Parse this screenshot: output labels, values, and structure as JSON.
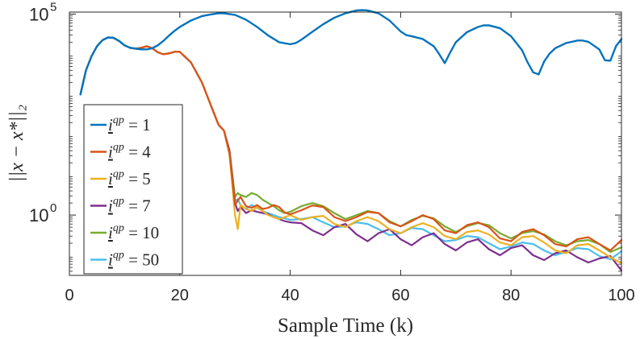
{
  "chart_data": {
    "type": "line",
    "title": "",
    "xlabel": "Sample Time (k)",
    "ylabel": "||x − x*||₂",
    "yscale": "log",
    "xlim": [
      0,
      100
    ],
    "ylim_log10": [
      -1.5,
      5.05
    ],
    "x_ticks": [
      0,
      20,
      40,
      60,
      80,
      100
    ],
    "x_tick_labels": [
      "0",
      "20",
      "40",
      "60",
      "80",
      "100"
    ],
    "y_ticks": [
      {
        "value_log10": 0,
        "base": "10",
        "exp": "0"
      },
      {
        "value_log10": 5,
        "base": "10",
        "exp": "5"
      }
    ],
    "legend_position": "middle-left",
    "legend_label_prefix": "i",
    "legend_label_superscript": "qp",
    "series": [
      {
        "name": "1",
        "color": "#0072BD",
        "x": [
          2,
          3,
          4,
          5,
          6,
          7,
          8,
          9,
          10,
          11,
          12,
          13,
          14,
          15,
          16,
          17,
          18,
          19,
          20,
          22,
          24,
          26,
          27,
          28,
          30,
          32,
          34,
          36,
          38,
          40,
          41,
          42,
          44,
          46,
          48,
          50,
          52,
          53,
          54,
          56,
          58,
          60,
          61,
          62,
          64,
          66,
          67,
          68,
          69,
          70,
          72,
          74,
          75,
          76,
          78,
          80,
          82,
          83,
          84,
          85,
          86,
          87,
          88,
          90,
          92,
          93,
          94,
          96,
          97,
          98,
          99,
          100
        ],
        "log10": [
          3.0,
          3.6,
          3.95,
          4.2,
          4.35,
          4.42,
          4.41,
          4.33,
          4.22,
          4.16,
          4.14,
          4.12,
          4.12,
          4.15,
          4.22,
          4.33,
          4.46,
          4.58,
          4.68,
          4.84,
          4.95,
          5.0,
          5.02,
          5.02,
          4.98,
          4.86,
          4.68,
          4.47,
          4.3,
          4.25,
          4.28,
          4.36,
          4.56,
          4.75,
          4.91,
          5.02,
          5.09,
          5.1,
          5.09,
          5.02,
          4.84,
          4.57,
          4.48,
          4.45,
          4.38,
          4.2,
          4.0,
          3.78,
          4.05,
          4.3,
          4.55,
          4.68,
          4.72,
          4.72,
          4.65,
          4.45,
          4.1,
          3.8,
          3.55,
          3.5,
          3.82,
          4.02,
          4.15,
          4.28,
          4.34,
          4.34,
          4.31,
          4.12,
          3.85,
          3.84,
          4.2,
          4.38
        ]
      },
      {
        "name": "4",
        "color": "#D95319",
        "x": [
          2,
          3,
          4,
          5,
          6,
          7,
          8,
          9,
          10,
          11,
          12,
          13,
          14,
          15,
          16,
          17,
          18,
          19,
          20,
          22,
          24,
          26,
          27,
          28,
          29,
          30,
          30.5,
          31,
          32,
          33,
          34,
          35,
          36,
          37,
          38,
          39,
          40,
          42,
          44,
          46,
          48,
          50,
          52,
          54,
          56,
          58,
          60,
          62,
          64,
          66,
          68,
          70,
          72,
          74,
          76,
          78,
          80,
          82,
          84,
          86,
          88,
          90,
          92,
          94,
          96,
          98,
          100
        ],
        "log10": [
          3.0,
          3.6,
          3.95,
          4.2,
          4.35,
          4.42,
          4.41,
          4.33,
          4.22,
          4.16,
          4.14,
          4.16,
          4.2,
          4.15,
          4.05,
          4.0,
          4.02,
          4.06,
          4.06,
          3.8,
          3.3,
          2.6,
          2.25,
          2.1,
          1.55,
          0.25,
          0.36,
          0.45,
          0.22,
          0.18,
          0.25,
          0.15,
          0.18,
          0.25,
          0.2,
          0.06,
          0.02,
          0.12,
          0.24,
          0.2,
          -0.05,
          -0.15,
          -0.05,
          0.08,
          0.05,
          -0.18,
          -0.28,
          -0.15,
          0.0,
          -0.1,
          -0.38,
          -0.45,
          -0.25,
          -0.18,
          -0.3,
          -0.58,
          -0.65,
          -0.42,
          -0.35,
          -0.5,
          -0.72,
          -0.78,
          -0.6,
          -0.55,
          -0.72,
          -0.88,
          -0.62
        ]
      },
      {
        "name": "5",
        "color": "#EDB120",
        "x": [
          2,
          3,
          4,
          5,
          6,
          7,
          8,
          9,
          10,
          11,
          12,
          13,
          14,
          15,
          16,
          17,
          18,
          19,
          20,
          22,
          24,
          26,
          27,
          28,
          29,
          30,
          30.5,
          31,
          32,
          33,
          34,
          35,
          36,
          37,
          38,
          39,
          40,
          42,
          44,
          46,
          48,
          50,
          52,
          54,
          56,
          58,
          60,
          62,
          64,
          66,
          68,
          70,
          72,
          74,
          76,
          78,
          80,
          82,
          84,
          86,
          88,
          90,
          92,
          94,
          96,
          98,
          100
        ],
        "log10": [
          3.0,
          3.6,
          3.95,
          4.2,
          4.35,
          4.42,
          4.41,
          4.33,
          4.22,
          4.16,
          4.14,
          4.16,
          4.2,
          4.15,
          4.05,
          4.0,
          4.02,
          4.06,
          4.06,
          3.8,
          3.3,
          2.6,
          2.25,
          2.1,
          1.5,
          0.0,
          -0.35,
          0.25,
          0.15,
          0.1,
          0.2,
          0.1,
          0.0,
          -0.05,
          -0.1,
          -0.05,
          0.0,
          -0.12,
          -0.05,
          -0.02,
          -0.22,
          -0.3,
          -0.15,
          -0.05,
          -0.15,
          -0.35,
          -0.45,
          -0.3,
          -0.2,
          -0.3,
          -0.52,
          -0.6,
          -0.42,
          -0.38,
          -0.48,
          -0.68,
          -0.75,
          -0.55,
          -0.52,
          -0.68,
          -0.88,
          -0.95,
          -0.75,
          -0.72,
          -0.88,
          -1.05,
          -1.2
        ]
      },
      {
        "name": "7",
        "color": "#7E2F8E",
        "x": [
          2,
          3,
          4,
          5,
          6,
          7,
          8,
          9,
          10,
          11,
          12,
          13,
          14,
          15,
          16,
          17,
          18,
          19,
          20,
          22,
          24,
          26,
          27,
          28,
          29,
          30,
          30.5,
          31,
          32,
          33,
          34,
          35,
          36,
          37,
          38,
          39,
          40,
          42,
          44,
          46,
          48,
          50,
          52,
          54,
          56,
          58,
          60,
          62,
          64,
          66,
          68,
          70,
          72,
          74,
          76,
          78,
          80,
          82,
          84,
          86,
          88,
          90,
          92,
          94,
          96,
          98,
          100
        ],
        "log10": [
          3.0,
          3.6,
          3.95,
          4.2,
          4.35,
          4.42,
          4.41,
          4.33,
          4.22,
          4.16,
          4.14,
          4.16,
          4.2,
          4.15,
          4.05,
          4.0,
          4.02,
          4.06,
          4.06,
          3.8,
          3.3,
          2.6,
          2.25,
          2.1,
          1.6,
          0.3,
          0.1,
          0.2,
          0.05,
          0.12,
          0.08,
          0.05,
          0.02,
          -0.05,
          -0.1,
          -0.15,
          -0.18,
          -0.2,
          -0.38,
          -0.5,
          -0.3,
          -0.22,
          -0.48,
          -0.65,
          -0.45,
          -0.35,
          -0.6,
          -0.75,
          -0.55,
          -0.45,
          -0.72,
          -0.88,
          -0.68,
          -0.6,
          -0.85,
          -1.0,
          -0.82,
          -0.75,
          -1.0,
          -1.12,
          -0.95,
          -0.88,
          -1.05,
          -1.18,
          -1.08,
          -1.02,
          -1.38
        ]
      },
      {
        "name": "10",
        "color": "#77AC30",
        "x": [
          2,
          3,
          4,
          5,
          6,
          7,
          8,
          9,
          10,
          11,
          12,
          13,
          14,
          15,
          16,
          17,
          18,
          19,
          20,
          22,
          24,
          26,
          27,
          28,
          29,
          30,
          30.5,
          31,
          32,
          33,
          34,
          35,
          36,
          37,
          38,
          39,
          40,
          42,
          44,
          46,
          48,
          50,
          52,
          54,
          56,
          58,
          60,
          62,
          64,
          66,
          68,
          70,
          72,
          74,
          76,
          78,
          80,
          82,
          84,
          86,
          88,
          90,
          92,
          94,
          96,
          98,
          100
        ],
        "log10": [
          3.0,
          3.6,
          3.95,
          4.2,
          4.35,
          4.42,
          4.41,
          4.33,
          4.22,
          4.16,
          4.14,
          4.16,
          4.2,
          4.15,
          4.05,
          4.0,
          4.02,
          4.06,
          4.06,
          3.8,
          3.3,
          2.6,
          2.25,
          2.1,
          1.6,
          0.45,
          0.55,
          0.5,
          0.45,
          0.55,
          0.5,
          0.38,
          0.3,
          0.22,
          0.12,
          0.05,
          0.08,
          0.22,
          0.3,
          0.22,
          0.05,
          -0.1,
          0.0,
          0.1,
          0.05,
          -0.15,
          -0.28,
          -0.12,
          -0.02,
          -0.08,
          -0.28,
          -0.42,
          -0.28,
          -0.2,
          -0.25,
          -0.45,
          -0.58,
          -0.45,
          -0.4,
          -0.48,
          -0.65,
          -0.75,
          -0.65,
          -0.62,
          -0.72,
          -0.92,
          -0.8
        ]
      },
      {
        "name": "50",
        "color": "#4DBEEE",
        "x": [
          2,
          3,
          4,
          5,
          6,
          7,
          8,
          9,
          10,
          11,
          12,
          13,
          14,
          15,
          16,
          17,
          18,
          19,
          20,
          22,
          24,
          26,
          27,
          28,
          29,
          30,
          30.5,
          31,
          32,
          33,
          34,
          35,
          36,
          37,
          38,
          39,
          40,
          42,
          44,
          46,
          48,
          50,
          52,
          54,
          56,
          58,
          60,
          62,
          64,
          66,
          68,
          70,
          72,
          74,
          76,
          78,
          80,
          82,
          84,
          86,
          88,
          90,
          92,
          94,
          96,
          98,
          100
        ],
        "log10": [
          3.0,
          3.6,
          3.95,
          4.2,
          4.35,
          4.42,
          4.41,
          4.33,
          4.22,
          4.16,
          4.14,
          4.16,
          4.2,
          4.15,
          4.05,
          4.0,
          4.02,
          4.06,
          4.06,
          3.8,
          3.3,
          2.6,
          2.25,
          2.1,
          1.5,
          0.35,
          0.4,
          0.25,
          0.15,
          0.25,
          0.18,
          0.1,
          0.05,
          0.0,
          -0.05,
          -0.08,
          -0.12,
          -0.1,
          -0.05,
          -0.18,
          -0.3,
          -0.28,
          -0.18,
          -0.22,
          -0.35,
          -0.5,
          -0.45,
          -0.32,
          -0.35,
          -0.5,
          -0.65,
          -0.62,
          -0.52,
          -0.55,
          -0.7,
          -0.85,
          -0.78,
          -0.68,
          -0.72,
          -0.88,
          -1.0,
          -0.92,
          -0.82,
          -0.85,
          -1.02,
          -1.1,
          -0.9
        ]
      }
    ]
  }
}
